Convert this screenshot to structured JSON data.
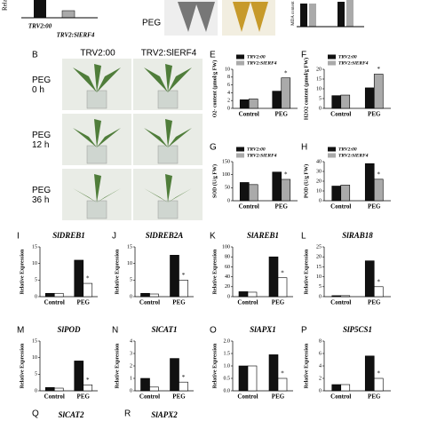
{
  "top_strip": {
    "y_label": "Rela",
    "cat1": "TRV2:00",
    "cat2": "TRV2:SlERF4",
    "photo_label": "PEG",
    "mda_label": "MDA content"
  },
  "panel_b": {
    "letter": "B",
    "col1": "TRV2:00",
    "col2": "TRV2:SlERF4",
    "rows": [
      "PEG\n0 h",
      "PEG\n12 h",
      "PEG\n36 h"
    ]
  },
  "bottom_strip": {
    "q_letter": "Q",
    "q_title": "SlCAT2",
    "r_letter": "R",
    "r_title": "SlAPX2"
  },
  "chart_data": [
    {
      "type": "bar",
      "letter": "E",
      "ylabel": "O2- content (μmol/g FW)",
      "categories": [
        "Control",
        "PEG"
      ],
      "series": [
        {
          "name": "TRV2:00",
          "color": "#111111",
          "values": [
            2.2,
            4.4
          ]
        },
        {
          "name": "TRV2:SlERF4",
          "color": "#aaaaaa",
          "values": [
            2.4,
            7.8
          ]
        }
      ],
      "ylim": [
        0,
        10
      ],
      "yticks": [
        0,
        2,
        4,
        6,
        8,
        10
      ],
      "significance": "*"
    },
    {
      "type": "bar",
      "letter": "F",
      "ylabel": "H2O2 content (μmol/g FW)",
      "categories": [
        "Control",
        "PEG"
      ],
      "series": [
        {
          "name": "TRV2:00",
          "color": "#111111",
          "values": [
            6.5,
            10.5
          ]
        },
        {
          "name": "TRV2:SlERF4",
          "color": "#aaaaaa",
          "values": [
            6.8,
            17.5
          ]
        }
      ],
      "ylim": [
        0,
        20
      ],
      "yticks": [
        0,
        5,
        10,
        15,
        20
      ],
      "significance": "*"
    },
    {
      "type": "bar",
      "letter": "G",
      "ylabel": "SOD (U/g FW)",
      "categories": [
        "Control",
        "PEG"
      ],
      "series": [
        {
          "name": "TRV2:00",
          "color": "#111111",
          "values": [
            70,
            110
          ]
        },
        {
          "name": "TRV2:SlERF4",
          "color": "#aaaaaa",
          "values": [
            62,
            82
          ]
        }
      ],
      "ylim": [
        0,
        150
      ],
      "yticks": [
        0,
        50,
        100,
        150
      ],
      "significance": "*"
    },
    {
      "type": "bar",
      "letter": "H",
      "ylabel": "POD (U/g FW)",
      "categories": [
        "Control",
        "PEG"
      ],
      "series": [
        {
          "name": "TRV2:00",
          "color": "#111111",
          "values": [
            15,
            38
          ]
        },
        {
          "name": "TRV2:SlERF4",
          "color": "#aaaaaa",
          "values": [
            16,
            22
          ]
        }
      ],
      "ylim": [
        0,
        40
      ],
      "yticks": [
        0,
        10,
        20,
        30,
        40
      ],
      "significance": "*"
    },
    {
      "type": "bar",
      "letter": "I",
      "title": "SlDREB1",
      "ylabel": "Relative Expression",
      "categories": [
        "Control",
        "PEG"
      ],
      "series": [
        {
          "color": "#111111",
          "values": [
            1,
            11
          ]
        },
        {
          "color": "#ffffff",
          "values": [
            1,
            4
          ]
        }
      ],
      "ylim": [
        0,
        15
      ],
      "yticks": [
        0,
        5,
        10,
        15
      ],
      "significance": "*"
    },
    {
      "type": "bar",
      "letter": "J",
      "title": "SlDREB2A",
      "ylabel": "Relative Expression",
      "categories": [
        "Control",
        "PEG"
      ],
      "series": [
        {
          "color": "#111111",
          "values": [
            1,
            12.5
          ]
        },
        {
          "color": "#ffffff",
          "values": [
            0.8,
            5
          ]
        }
      ],
      "ylim": [
        0,
        15
      ],
      "yticks": [
        0,
        5,
        10,
        15
      ],
      "significance": "*"
    },
    {
      "type": "bar",
      "letter": "K",
      "title": "SlAREB1",
      "ylabel": "Relative Expression",
      "categories": [
        "Control",
        "PEG"
      ],
      "series": [
        {
          "color": "#111111",
          "values": [
            10,
            80
          ]
        },
        {
          "color": "#ffffff",
          "values": [
            9,
            38
          ]
        }
      ],
      "ylim": [
        0,
        100
      ],
      "yticks": [
        0,
        20,
        40,
        60,
        80,
        100
      ],
      "significance": "*"
    },
    {
      "type": "bar",
      "letter": "L",
      "title": "SlRAB18",
      "ylabel": "Relative Expression",
      "categories": [
        "Control",
        "PEG"
      ],
      "series": [
        {
          "color": "#111111",
          "values": [
            0.5,
            18
          ]
        },
        {
          "color": "#ffffff",
          "values": [
            0.5,
            5
          ]
        }
      ],
      "ylim": [
        0,
        25
      ],
      "yticks": [
        0,
        5,
        10,
        15,
        20,
        25
      ],
      "significance": "*"
    },
    {
      "type": "bar",
      "letter": "M",
      "title": "SlPOD",
      "ylabel": "Relative Expression",
      "categories": [
        "Control",
        "PEG"
      ],
      "series": [
        {
          "color": "#111111",
          "values": [
            1,
            9
          ]
        },
        {
          "color": "#ffffff",
          "values": [
            0.8,
            1.8
          ]
        }
      ],
      "ylim": [
        0,
        15
      ],
      "yticks": [
        0,
        5,
        10,
        15
      ],
      "significance": "*"
    },
    {
      "type": "bar",
      "letter": "N",
      "title": "SlCAT1",
      "ylabel": "Relative Expression",
      "categories": [
        "Control",
        "PEG"
      ],
      "series": [
        {
          "color": "#111111",
          "values": [
            1,
            2.6
          ]
        },
        {
          "color": "#ffffff",
          "values": [
            0.3,
            0.7
          ]
        }
      ],
      "ylim": [
        0,
        4
      ],
      "yticks": [
        0,
        1,
        2,
        3,
        4
      ],
      "significance": "*"
    },
    {
      "type": "bar",
      "letter": "O",
      "title": "SlAPX1",
      "ylabel": "Relative Expression",
      "categories": [
        "Control",
        "PEG"
      ],
      "series": [
        {
          "color": "#111111",
          "values": [
            1.0,
            1.45
          ]
        },
        {
          "color": "#ffffff",
          "values": [
            1.0,
            0.5
          ]
        }
      ],
      "ylim": [
        0,
        2
      ],
      "yticks": [
        {
          "value": 0,
          "label": "0.0"
        },
        {
          "value": 0.5,
          "label": "0.5"
        },
        {
          "value": 1,
          "label": "1.0"
        },
        {
          "value": 1.5,
          "label": "1.5"
        },
        {
          "value": 2,
          "label": "2.0"
        }
      ],
      "significance": "*"
    },
    {
      "type": "bar",
      "letter": "P",
      "title": "SlP5CS1",
      "ylabel": "Relative Expression",
      "categories": [
        "Control",
        "PEG"
      ],
      "series": [
        {
          "color": "#111111",
          "values": [
            1,
            5.6
          ]
        },
        {
          "color": "#ffffff",
          "values": [
            1,
            2
          ]
        }
      ],
      "ylim": [
        0,
        8
      ],
      "yticks": [
        0,
        2,
        4,
        6,
        8
      ],
      "significance": "*"
    }
  ]
}
